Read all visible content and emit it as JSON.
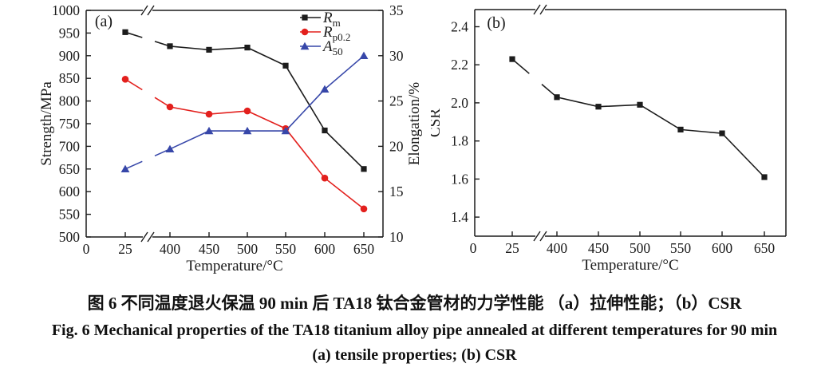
{
  "figure": {
    "caption_chinese": "图 6  不同温度退火保温 90 min 后 TA18 钛合金管材的力学性能  （a）拉伸性能；（b）CSR",
    "caption_english": "Fig. 6   Mechanical properties of the TA18 titanium alloy pipe annealed at different temperatures for 90 min",
    "caption_sub": "(a) tensile properties; (b) CSR"
  },
  "chart_data": [
    {
      "type": "line",
      "panel_label": "(a)",
      "x": [
        25,
        400,
        450,
        500,
        550,
        600,
        650
      ],
      "x_axis": {
        "label": "Temperature/°C",
        "ticks": [
          "0",
          "25",
          "400",
          "450",
          "500",
          "550",
          "600",
          "650"
        ],
        "axis_break_between": [
          25,
          400
        ]
      },
      "y_left": {
        "label": "Strength/MPa",
        "min": 500,
        "max": 1000,
        "ticks": [
          "500",
          "550",
          "600",
          "650",
          "700",
          "750",
          "800",
          "850",
          "900",
          "950",
          "1000"
        ]
      },
      "y_right": {
        "label": "Elongation/%",
        "min": 10,
        "max": 35,
        "ticks": [
          "10",
          "15",
          "20",
          "25",
          "30",
          "35"
        ]
      },
      "grid": false,
      "legend_position": "top-right-inside",
      "series": [
        {
          "name": "Rm",
          "legend_main": "R",
          "legend_sub": "m",
          "axis": "left",
          "color": "#1c1c1c",
          "marker": "square",
          "values": [
            952,
            921,
            913,
            918,
            878,
            735,
            650
          ]
        },
        {
          "name": "Rp0.2",
          "legend_main": "R",
          "legend_sub": "p0.2",
          "axis": "left",
          "color": "#e3201d",
          "marker": "circle",
          "values": [
            848,
            787,
            771,
            778,
            739,
            630,
            562
          ]
        },
        {
          "name": "A50",
          "legend_main": "A",
          "legend_sub": "50",
          "axis": "right",
          "color": "#3747a9",
          "marker": "triangle",
          "values": [
            17.5,
            19.7,
            21.7,
            21.7,
            21.7,
            26.3,
            30.0
          ]
        }
      ]
    },
    {
      "type": "line",
      "panel_label": "(b)",
      "x": [
        25,
        400,
        450,
        500,
        550,
        600,
        650
      ],
      "x_axis": {
        "label": "Temperature/°C",
        "ticks": [
          "0",
          "25",
          "400",
          "450",
          "500",
          "550",
          "600",
          "650"
        ],
        "axis_break_between": [
          25,
          400
        ]
      },
      "y_left": {
        "label": "CSR",
        "min": 1.3,
        "max": 2.49,
        "ticks": [
          "1.4",
          "1.6",
          "1.8",
          "2.0",
          "2.2",
          "2.4"
        ]
      },
      "grid": false,
      "series": [
        {
          "name": "CSR",
          "axis": "left",
          "color": "#1c1c1c",
          "marker": "square",
          "values": [
            2.23,
            2.03,
            1.98,
            1.99,
            1.86,
            1.84,
            1.61
          ]
        }
      ]
    }
  ]
}
